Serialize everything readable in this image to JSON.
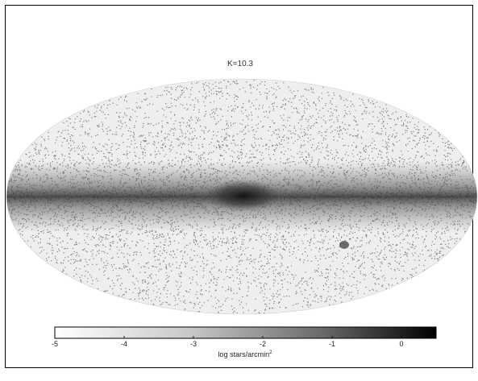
{
  "chart_data": {
    "type": "heatmap",
    "projection": "all-sky Aitoff-style ellipse (Galactic coordinates)",
    "title": "K=10.3",
    "colorbar": {
      "label": "log stars/arcmin",
      "label_superscript": "2",
      "range": [
        -5,
        0.5
      ],
      "ticks": [
        -5,
        -4,
        -3,
        -2,
        -1,
        0
      ],
      "tick_labels": [
        "-5",
        "-4",
        "-3",
        "-2",
        "-1",
        "0"
      ],
      "colormap": "white-to-black grayscale"
    },
    "features": {
      "galactic_plane_band": "dense dark band along the equator",
      "galactic_center": "darkest region at map center",
      "lmc": "small dark clump lower right",
      "background_density": "sparse speckled stars at high latitudes"
    }
  }
}
